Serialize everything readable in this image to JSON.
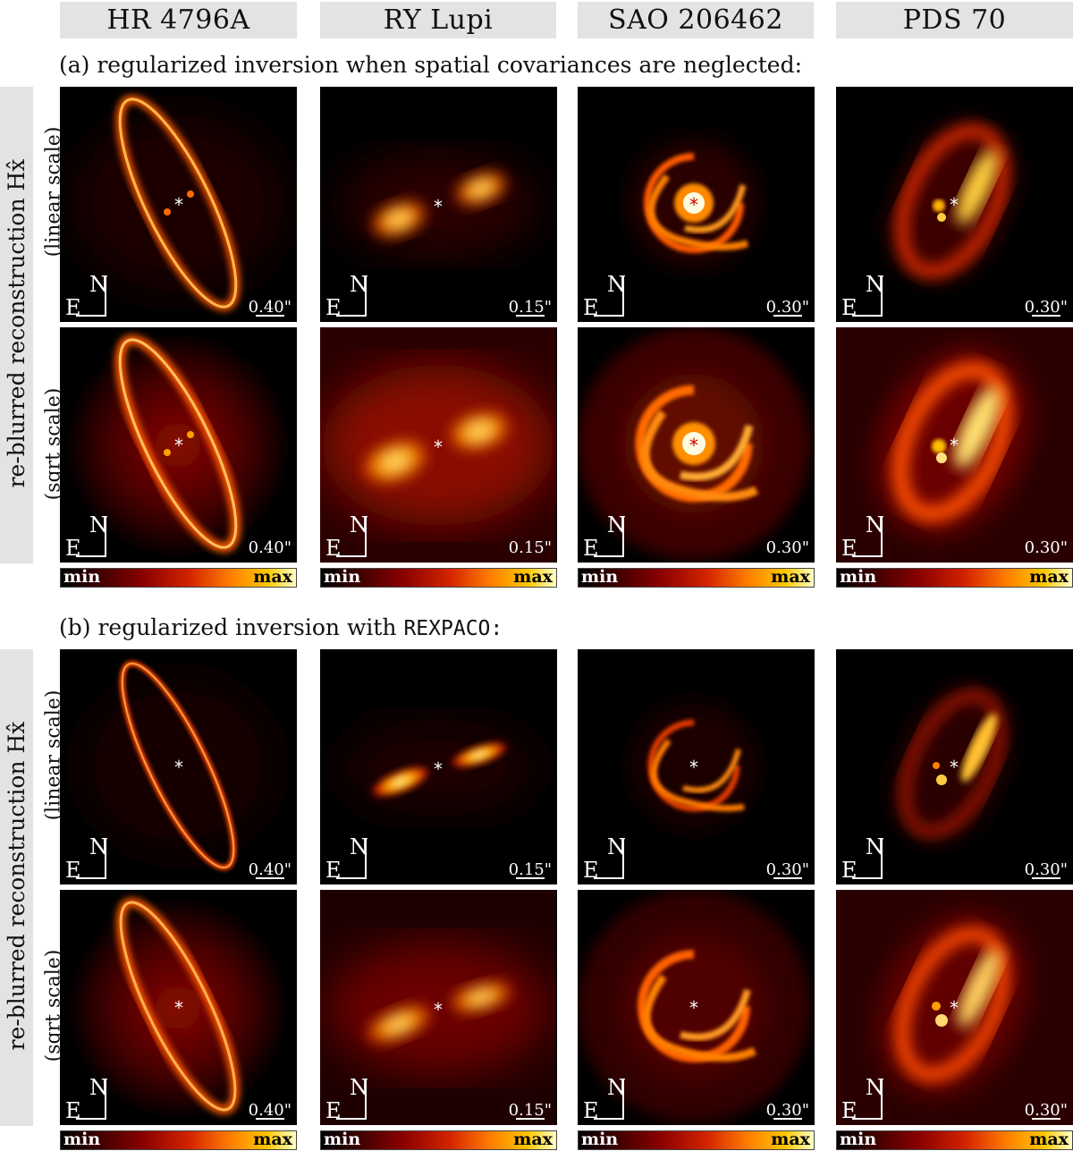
{
  "columns": [
    "HR 4796A",
    "RY Lupi",
    "SAO 206462",
    "PDS 70"
  ],
  "sections": [
    {
      "title": "(a) regularized inversion when spatial covariances are neglected:",
      "title_suffix": "",
      "side_label": "re-blurred reconstruction Hx̂",
      "row_labels": [
        "(linear scale)",
        "(sqrt scale)"
      ]
    },
    {
      "title": "(b) regularized inversion with ",
      "title_suffix": "REXPACO:",
      "side_label": "re-blurred reconstruction Hx̂",
      "row_labels": [
        "(linear scale)",
        "(sqrt scale)"
      ]
    }
  ],
  "scale_labels": [
    "0.40\"",
    "0.15\"",
    "0.30\"",
    "0.30\""
  ],
  "compass": {
    "north": "N",
    "east": "E"
  },
  "star_marker": "*",
  "colorbar": {
    "min": "min",
    "max": "max",
    "colormap": "hot"
  }
}
